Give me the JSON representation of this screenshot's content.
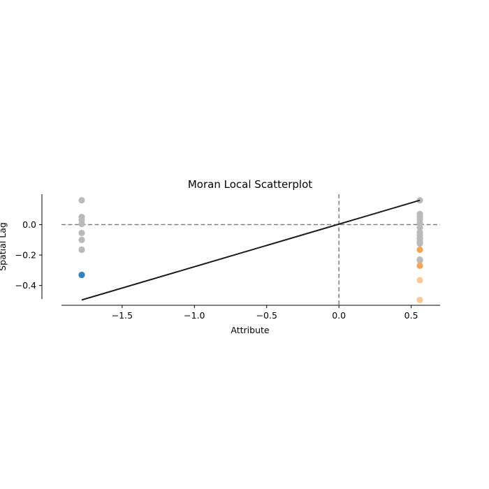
{
  "chart_data": {
    "type": "scatter",
    "title": "Moran Local Scatterplot",
    "xlabel": "Attribute",
    "ylabel": "Spatial Lag",
    "xlim": [
      -1.92,
      0.7
    ],
    "ylim": [
      -0.53,
      0.2
    ],
    "xticks": [
      -1.5,
      -1.0,
      -0.5,
      0.0,
      0.5
    ],
    "xtick_labels": [
      "−1.5",
      "−1.0",
      "−0.5",
      "0.0",
      "0.5"
    ],
    "yticks": [
      -0.4,
      -0.2,
      0.0
    ],
    "ytick_labels": [
      "−0.4",
      "−0.2",
      "0.0"
    ],
    "reference_lines": {
      "vertical_x": 0.0,
      "horizontal_y": 0.0,
      "style": "dashed",
      "color": "#808080"
    },
    "fit_line": {
      "x": [
        -1.78,
        0.56
      ],
      "y": [
        -0.495,
        0.16
      ],
      "color": "#1a1a1a"
    },
    "series": [
      {
        "color": "#bababa",
        "x": [
          -1.78,
          -1.78,
          -1.78,
          -1.78,
          -1.78,
          -1.78,
          -1.78,
          -1.78,
          0.56,
          0.56,
          0.56,
          0.56,
          0.56,
          0.56,
          0.56,
          0.56,
          0.56,
          0.56,
          0.56,
          0.56,
          0.56
        ],
        "y": [
          0.16,
          0.05,
          0.03,
          0.005,
          -0.055,
          -0.1,
          -0.165,
          -0.165,
          0.16,
          0.07,
          0.05,
          0.035,
          0.01,
          -0.02,
          -0.05,
          -0.07,
          -0.09,
          -0.11,
          -0.125,
          -0.23,
          -0.235
        ]
      },
      {
        "color": "#3182bd",
        "x": [
          -1.78
        ],
        "y": [
          -0.33
        ]
      },
      {
        "color": "#f2a65a",
        "x": [
          0.56,
          0.56
        ],
        "y": [
          -0.165,
          -0.27
        ]
      },
      {
        "color": "#fbc898",
        "x": [
          0.56,
          0.56
        ],
        "y": [
          -0.365,
          -0.495
        ]
      }
    ],
    "grid": false,
    "spines": [
      "left",
      "bottom"
    ]
  }
}
